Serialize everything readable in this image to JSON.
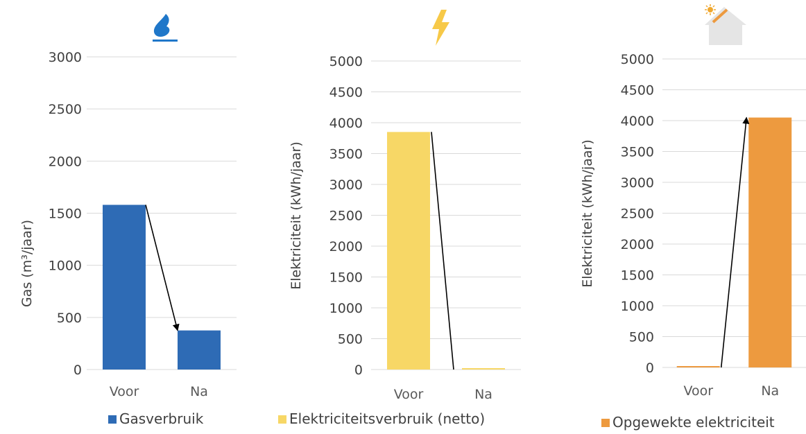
{
  "chart_data": [
    {
      "type": "bar",
      "icon": "gas-flame-icon",
      "categories": [
        "Voor",
        "Na"
      ],
      "series": [
        {
          "name": "Gasverbruik",
          "values": [
            1580,
            375
          ],
          "color": "#2e6bb5"
        }
      ],
      "ylabel": "Gas (m³/jaar)",
      "ylim": [
        0,
        3000
      ],
      "yticks": [
        "0",
        "500",
        "1000",
        "1500",
        "2000",
        "2500",
        "3000"
      ],
      "grid": true,
      "legend": "bottom",
      "arrow": {
        "from": "Voor",
        "to": "Na"
      }
    },
    {
      "type": "bar",
      "icon": "lightning-bolt-icon",
      "categories": [
        "Voor",
        "Na"
      ],
      "series": [
        {
          "name": "Elektriciteitsverbruik (netto)",
          "values": [
            3850,
            0
          ],
          "color": "#f7d766"
        }
      ],
      "ylabel": "Elektriciteit (kWh/jaar)",
      "ylim": [
        0,
        5000
      ],
      "yticks": [
        "0",
        "500",
        "1000",
        "1500",
        "2000",
        "2500",
        "3000",
        "3500",
        "4000",
        "4500",
        "5000"
      ],
      "grid": true,
      "legend": "bottom",
      "arrow": {
        "from": "Voor",
        "to": "Na"
      }
    },
    {
      "type": "bar",
      "icon": "solar-house-icon",
      "categories": [
        "Voor",
        "Na"
      ],
      "series": [
        {
          "name": "Opgewekte elektriciteit",
          "values": [
            0,
            4050
          ],
          "color": "#ed9a3f"
        }
      ],
      "ylabel": "Elektriciteit (kWh/jaar)",
      "ylim": [
        0,
        5000
      ],
      "yticks": [
        "0",
        "500",
        "1000",
        "1500",
        "2000",
        "2500",
        "3000",
        "3500",
        "4000",
        "4500",
        "5000"
      ],
      "grid": true,
      "legend": "bottom",
      "arrow": {
        "from": "Voor",
        "to": "Na"
      }
    }
  ]
}
